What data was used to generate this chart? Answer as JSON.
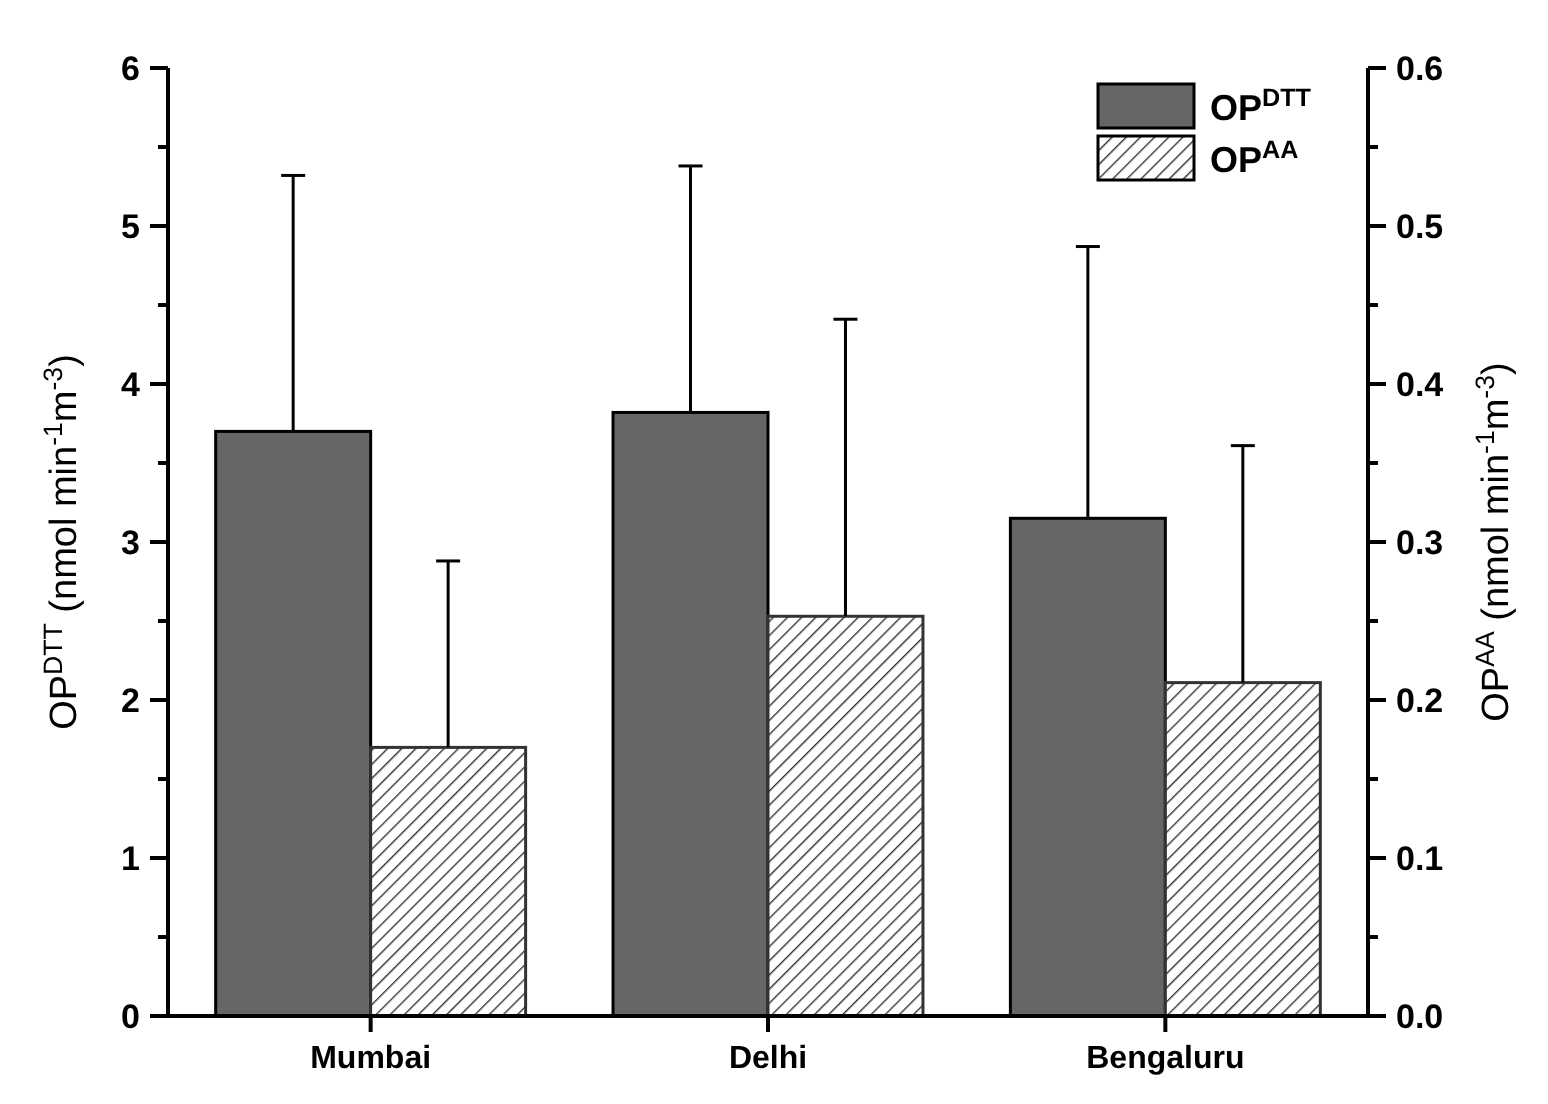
{
  "chart_data": {
    "type": "bar",
    "categories": [
      "Mumbai",
      "Delhi",
      "Bengaluru"
    ],
    "ylabel": "OP$^{DTT}$ (nmol min$^{-1}$m$^{-3}$)",
    "y2label": "OP$^{AA}$ (nmol min$^{-1}$m$^{-3}$)",
    "ylim": [
      0,
      6
    ],
    "yticks": [
      0,
      {
        "value": 0.5,
        "label": null
      },
      1,
      {
        "value": 1.5,
        "label": null
      },
      2,
      {
        "value": 2.5,
        "label": null
      },
      3,
      {
        "value": 3.5,
        "label": null
      },
      4,
      {
        "value": 4.5,
        "label": null
      },
      5,
      {
        "value": 5.5,
        "label": null
      },
      6
    ],
    "y2lim": [
      0,
      0.6
    ],
    "y2ticks": [
      "0.0",
      {
        "value": 0.05,
        "label": null
      },
      0.1,
      {
        "value": 0.15,
        "label": null
      },
      0.2,
      {
        "value": 0.25,
        "label": null
      },
      0.3,
      {
        "value": 0.35,
        "label": null
      },
      0.4,
      {
        "value": 0.45,
        "label": null
      },
      0.5,
      {
        "value": 0.55,
        "label": null
      },
      0.6
    ],
    "legend": "top right",
    "grid": false,
    "series": [
      {
        "name": "OP$^{DTT}$",
        "color": "#666666",
        "values": [
          3.7,
          3.82,
          3.15
        ],
        "errors": [
          [
            3.7,
            5.32
          ],
          [
            3.82,
            5.38
          ],
          [
            3.15,
            4.87
          ]
        ]
      },
      {
        "name": "OP$^{AA}$",
        "color": "#333333",
        "axis": "y2",
        "values": [
          0.17,
          0.253,
          0.211
        ],
        "errors": [
          [
            0.17,
            0.288
          ],
          [
            0.253,
            0.441
          ],
          [
            0.211,
            0.361
          ]
        ]
      }
    ]
  }
}
